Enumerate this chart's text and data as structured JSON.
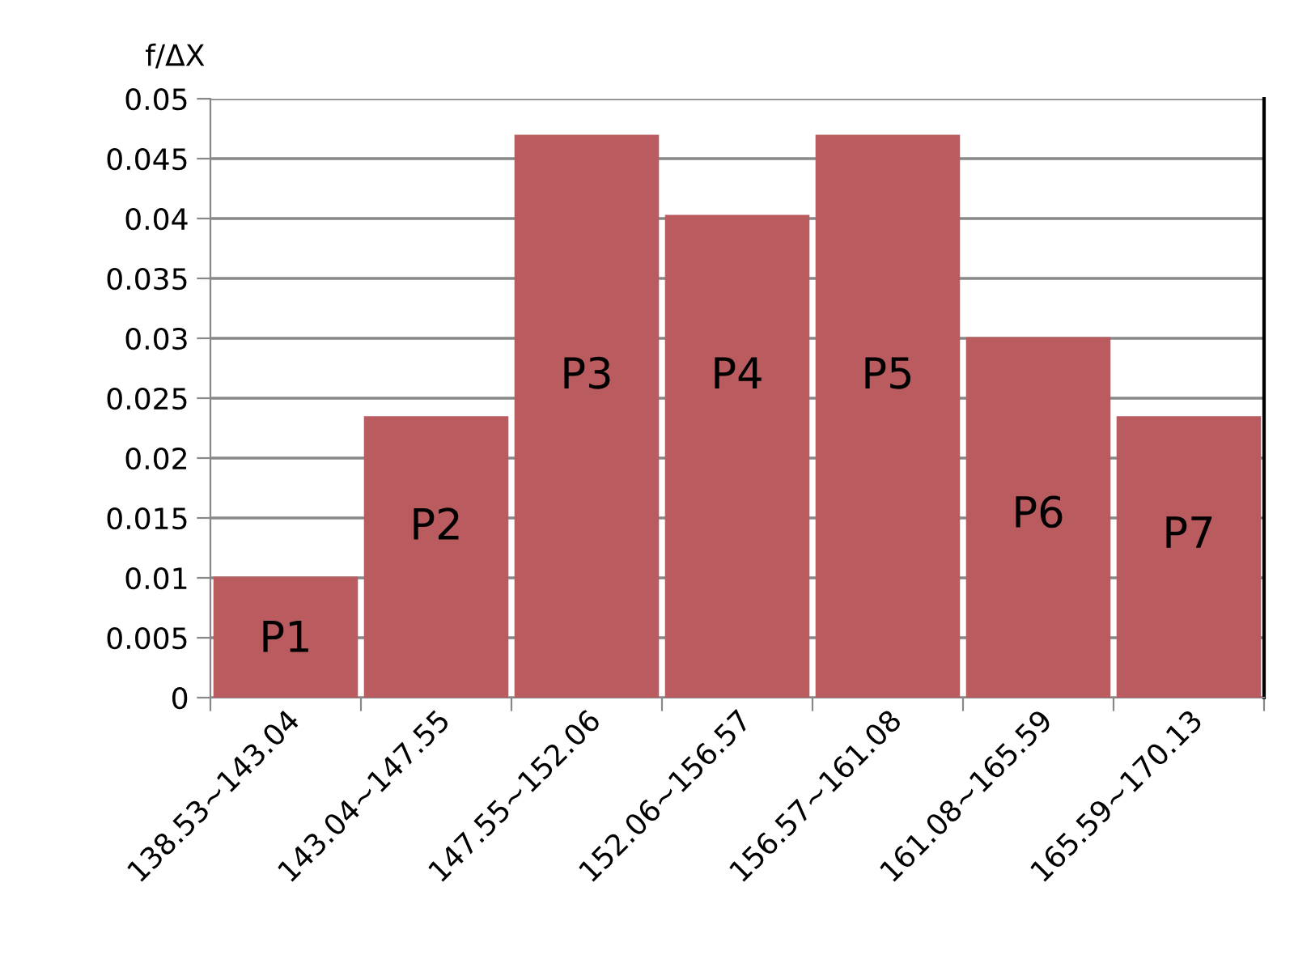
{
  "chart_data": {
    "type": "bar",
    "ylabel": "f/ΔX",
    "categories": [
      "138.53~143.04",
      "143.04~147.55",
      "147.55~152.06",
      "152.06~156.57",
      "156.57~161.08",
      "161.08~165.59",
      "165.59~170.13"
    ],
    "values": [
      0.0101,
      0.0235,
      0.047,
      0.0403,
      0.047,
      0.0301,
      0.0235
    ],
    "color": "#b95b5f",
    "ylim": [
      0,
      0.05
    ],
    "yticks": [
      {
        "value": 0,
        "label": "0"
      },
      0.005,
      0.01,
      0.015,
      0.02,
      0.025,
      0.03,
      0.035,
      0.04,
      0.045,
      0.05
    ],
    "grid": "y",
    "annotations": [
      {
        "text": "P1",
        "x": "138.53~143.04",
        "y": 0.0048
      },
      {
        "text": "P2",
        "x": "143.04~147.55",
        "y": 0.0142
      },
      {
        "text": "P3",
        "x": "147.55~152.06",
        "y": 0.0268
      },
      {
        "text": "P4",
        "x": "152.06~156.57",
        "y": 0.0268
      },
      {
        "text": "P5",
        "x": "156.57~161.08",
        "y": 0.0268
      },
      {
        "text": "P6",
        "x": "161.08~165.59",
        "y": 0.0152
      },
      {
        "text": "P7",
        "x": "165.59~170.13",
        "y": 0.0135
      }
    ]
  }
}
